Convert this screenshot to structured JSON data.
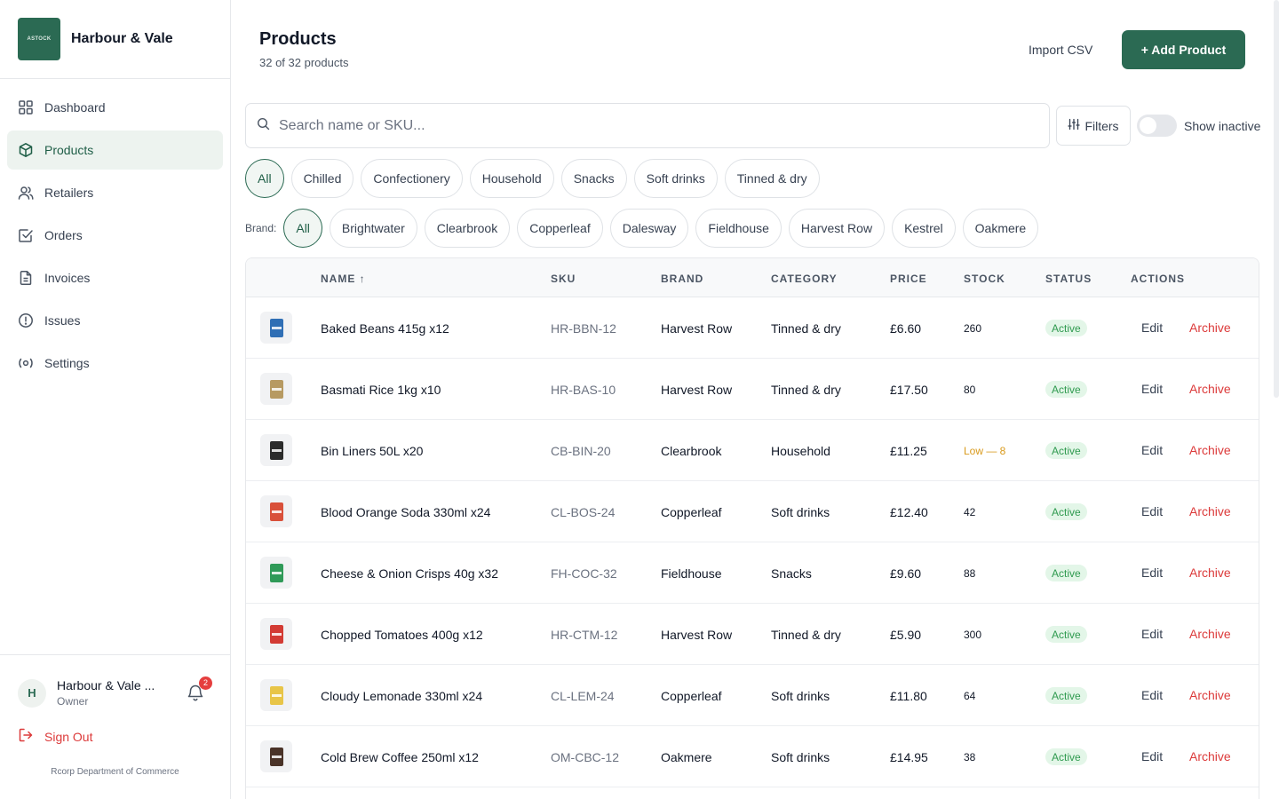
{
  "app": {
    "name": "Harbour & Vale",
    "logo_text": "ASTOCK"
  },
  "sidebar": {
    "items": [
      {
        "label": "Dashboard",
        "icon": "grid-icon"
      },
      {
        "label": "Products",
        "icon": "box-icon"
      },
      {
        "label": "Retailers",
        "icon": "users-icon"
      },
      {
        "label": "Orders",
        "icon": "checkbox-icon"
      },
      {
        "label": "Invoices",
        "icon": "document-icon"
      },
      {
        "label": "Issues",
        "icon": "alert-circle-icon"
      },
      {
        "label": "Settings",
        "icon": "settings-icon"
      }
    ],
    "active": "Products",
    "user": {
      "initial": "H",
      "name": "Harbour & Vale ...",
      "role": "Owner",
      "notifications": "2"
    },
    "sign_out": "Sign Out",
    "footer": "Rcorp Department of Commerce"
  },
  "header": {
    "title": "Products",
    "subtitle": "32 of 32 products",
    "import_label": "Import CSV",
    "add_label": "+ Add Product"
  },
  "search": {
    "placeholder": "Search name or SKU...",
    "value": ""
  },
  "filters": {
    "button_label": "Filters",
    "show_inactive_label": "Show inactive",
    "show_inactive": false
  },
  "category_chips": [
    "All",
    "Chilled",
    "Confectionery",
    "Household",
    "Snacks",
    "Soft drinks",
    "Tinned & dry"
  ],
  "brand_label": "Brand:",
  "brand_chips": [
    "All",
    "Brightwater",
    "Clearbrook",
    "Copperleaf",
    "Dalesway",
    "Fieldhouse",
    "Harvest Row",
    "Kestrel",
    "Oakmere"
  ],
  "table": {
    "columns": [
      "NAME ↑",
      "SKU",
      "BRAND",
      "CATEGORY",
      "PRICE",
      "STOCK",
      "STATUS",
      "ACTIONS"
    ],
    "edit_label": "Edit",
    "archive_label": "Archive",
    "rows": [
      {
        "name": "Baked Beans 415g x12",
        "sku": "HR-BBN-12",
        "brand": "Harvest Row",
        "category": "Tinned & dry",
        "price": "£6.60",
        "stock": "260",
        "stock_low": false,
        "status": "Active",
        "color": "#2f6fb5"
      },
      {
        "name": "Basmati Rice 1kg x10",
        "sku": "HR-BAS-10",
        "brand": "Harvest Row",
        "category": "Tinned & dry",
        "price": "£17.50",
        "stock": "80",
        "stock_low": false,
        "status": "Active",
        "color": "#b79a62"
      },
      {
        "name": "Bin Liners 50L x20",
        "sku": "CB-BIN-20",
        "brand": "Clearbrook",
        "category": "Household",
        "price": "£11.25",
        "stock": "Low — 8",
        "stock_low": true,
        "status": "Active",
        "color": "#2b2b2b"
      },
      {
        "name": "Blood Orange Soda 330ml x24",
        "sku": "CL-BOS-24",
        "brand": "Copperleaf",
        "category": "Soft drinks",
        "price": "£12.40",
        "stock": "42",
        "stock_low": false,
        "status": "Active",
        "color": "#d9503a"
      },
      {
        "name": "Cheese & Onion Crisps 40g x32",
        "sku": "FH-COC-32",
        "brand": "Fieldhouse",
        "category": "Snacks",
        "price": "£9.60",
        "stock": "88",
        "stock_low": false,
        "status": "Active",
        "color": "#2f9a58"
      },
      {
        "name": "Chopped Tomatoes 400g x12",
        "sku": "HR-CTM-12",
        "brand": "Harvest Row",
        "category": "Tinned & dry",
        "price": "£5.90",
        "stock": "300",
        "stock_low": false,
        "status": "Active",
        "color": "#d33b34"
      },
      {
        "name": "Cloudy Lemonade 330ml x24",
        "sku": "CL-LEM-24",
        "brand": "Copperleaf",
        "category": "Soft drinks",
        "price": "£11.80",
        "stock": "64",
        "stock_low": false,
        "status": "Active",
        "color": "#e8c548"
      },
      {
        "name": "Cold Brew Coffee 250ml x12",
        "sku": "OM-CBC-12",
        "brand": "Oakmere",
        "category": "Soft drinks",
        "price": "£14.95",
        "stock": "38",
        "stock_low": false,
        "status": "Active",
        "color": "#4a3328"
      }
    ]
  },
  "colors": {
    "accent": "#2b6a53",
    "danger": "#dc3a3a",
    "status_active_bg": "#e3f6e8",
    "status_active_text": "#2f9a4f",
    "low_stock": "#d99a1c"
  }
}
